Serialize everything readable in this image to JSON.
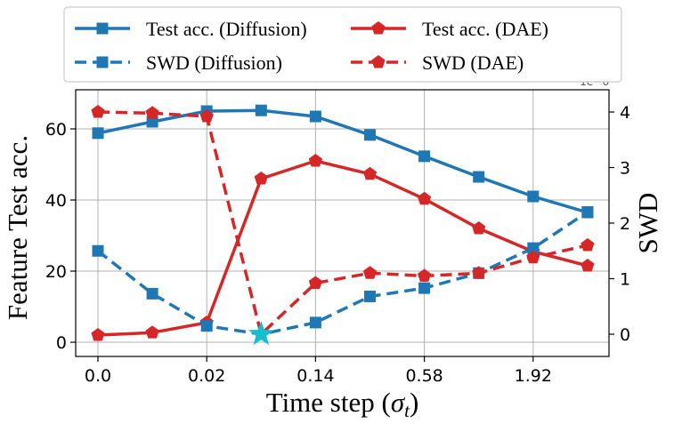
{
  "chart_data": {
    "type": "line",
    "xlabel": "Time step (",
    "xlabel_sigma": "σ",
    "xlabel_sub": "t",
    "xlabel_close": ")",
    "ylabel": "Feature Test acc.",
    "y2label": "SWD",
    "y2_offset_label": "1e−6",
    "x_tick_labels": [
      "0.0",
      "0.02",
      "0.14",
      "0.58",
      "1.92"
    ],
    "x_tick_indices": [
      0,
      2,
      4,
      6,
      8
    ],
    "x_count": 10,
    "ylim": [
      -4,
      71
    ],
    "y_ticks": [
      0,
      20,
      40,
      60
    ],
    "y2lim": [
      -0.4,
      4.4
    ],
    "y2_ticks": [
      0,
      1,
      2,
      3,
      4
    ],
    "grid": true,
    "legend_position": "top",
    "series": [
      {
        "name": "Test acc. (Diffusion)",
        "axis": "left",
        "color": "#1f77b4",
        "dash": "solid",
        "marker": "square",
        "values": [
          58.8,
          62,
          65,
          65.2,
          63.5,
          58.3,
          52.3,
          46.5,
          41,
          36.5
        ]
      },
      {
        "name": "Test acc. (DAE)",
        "axis": "left",
        "color": "#d62728",
        "dash": "solid",
        "marker": "pentagon",
        "values": [
          2.0,
          2.7,
          5.5,
          46,
          51,
          47.3,
          40.3,
          32,
          25.5,
          21.5
        ]
      },
      {
        "name": "SWD (Diffusion)",
        "axis": "right",
        "color": "#1f77b4",
        "dash": "dashed",
        "marker": "square",
        "values": [
          1.5,
          0.73,
          0.15,
          null,
          0.21,
          0.68,
          0.83,
          1.1,
          1.55,
          2.2
        ]
      },
      {
        "name": "SWD (DAE)",
        "axis": "right",
        "color": "#d62728",
        "dash": "dashed",
        "marker": "pentagon",
        "values": [
          4.0,
          3.98,
          3.92,
          null,
          0.92,
          1.1,
          1.05,
          1.1,
          1.38,
          1.6
        ]
      }
    ],
    "star": {
      "x_index": 3,
      "y2": 0.0,
      "color": "#17becf"
    }
  }
}
